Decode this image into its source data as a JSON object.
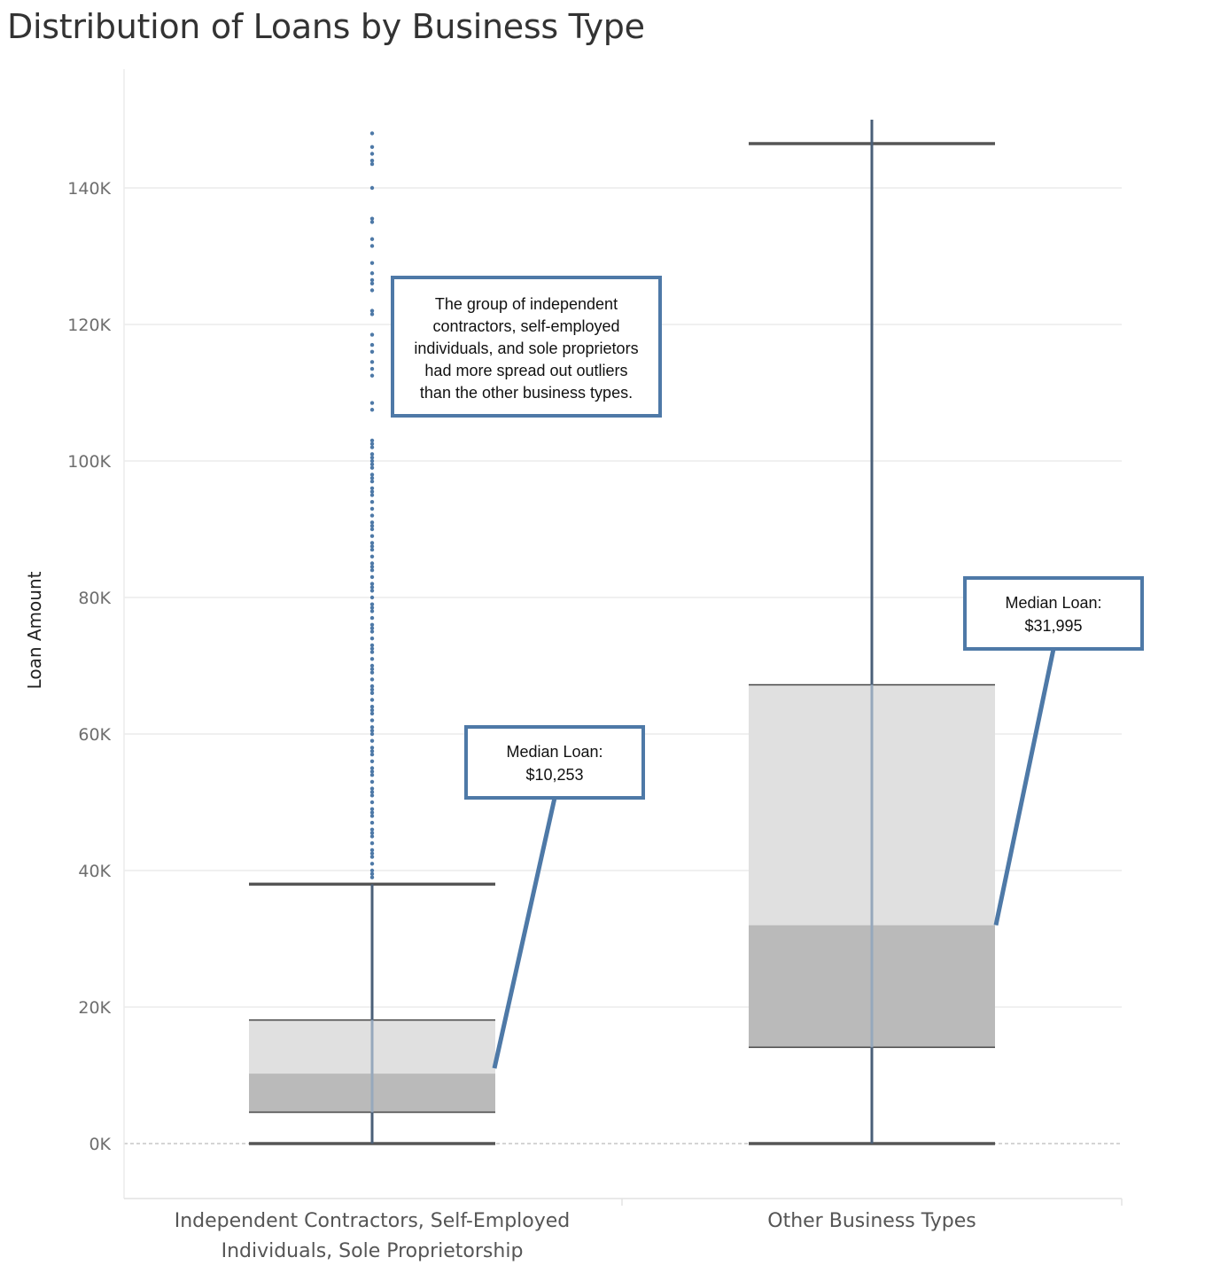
{
  "chart_data": {
    "type": "box",
    "title": "Distribution of Loans by Business Type",
    "ylabel": "Loan Amount",
    "xlabel": "",
    "ylim": [
      -7000,
      165000
    ],
    "yticks": [
      0,
      20000,
      40000,
      60000,
      80000,
      100000,
      120000,
      140000
    ],
    "ytick_labels": [
      "0K",
      "20K",
      "40K",
      "60K",
      "80K",
      "100K",
      "120K",
      "140K"
    ],
    "grid": true,
    "categories": [
      {
        "label_lines": [
          "Independent Contractors, Self-Employed",
          "Individuals, Sole Proprietorship"
        ],
        "min": 0,
        "q1": 4600,
        "median": 10253,
        "q3": 18100,
        "whisker_high": 38000,
        "line_top": 38000,
        "outliers": [
          148000,
          146000,
          145000,
          144000,
          143500,
          140000,
          135500,
          135000,
          132500,
          131500,
          129000,
          127500,
          126500,
          126000,
          125000,
          122000,
          121500,
          118500,
          117000,
          116000,
          114500,
          113500,
          112500,
          108500,
          107500,
          103000,
          102500,
          102000,
          101000,
          100500,
          100000,
          99500,
          99000,
          98000,
          97500,
          97000,
          96000,
          95500,
          95000,
          94000,
          93000,
          92000,
          91000,
          90500,
          90000,
          89000,
          88000,
          87500,
          87000,
          86000,
          85000,
          84500,
          84000,
          83000,
          82000,
          81500,
          81000,
          80000,
          79000,
          78500,
          78000,
          77000,
          76000,
          75500,
          75000,
          74000,
          73000,
          72500,
          72000,
          71000,
          70000,
          69500,
          69000,
          68000,
          67000,
          66500,
          66000,
          65000,
          64000,
          63500,
          63000,
          62000,
          61000,
          60500,
          60000,
          59000,
          58000,
          57500,
          57000,
          56000,
          55000,
          54500,
          54000,
          53000,
          52000,
          51500,
          51000,
          50000,
          49000,
          48500,
          48000,
          47000,
          46000,
          45500,
          45000,
          44000,
          43000,
          42500,
          42000,
          41000,
          40000,
          39500,
          39000
        ]
      },
      {
        "label_lines": [
          "Other Business Types"
        ],
        "min": 0,
        "q1": 14100,
        "median": 31995,
        "q3": 67200,
        "whisker_high": 146500,
        "line_top": 150000,
        "outliers": []
      }
    ],
    "annotations": [
      {
        "lines": [
          "The group of independent",
          "contractors, self-employed",
          "individuals, and sole proprietors",
          "had more spread out outliers",
          "than the other business types."
        ]
      },
      {
        "lines": [
          "Median Loan:",
          "$10,253"
        ],
        "points_to": 10253
      },
      {
        "lines": [
          "Median Loan:",
          "$31,995"
        ],
        "points_to": 31995
      }
    ],
    "colors": {
      "accent": "#4e79a7",
      "box_upper": "#e0e0e0",
      "box_lower": "#bababa",
      "whisker": "#555555",
      "grid": "#ececec"
    }
  }
}
